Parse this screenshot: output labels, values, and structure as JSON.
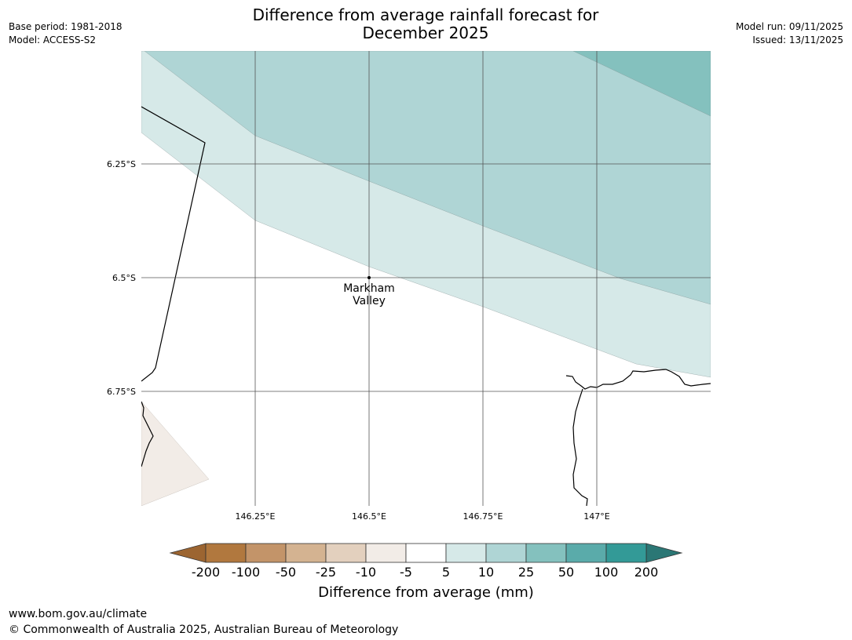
{
  "title_line1": "Difference from average rainfall forecast for",
  "title_line2": "December 2025",
  "meta_left": [
    "Base period: 1981-2018",
    "Model: ACCESS-S2"
  ],
  "meta_right": [
    "Model run: 09/11/2025",
    "Issued: 13/11/2025"
  ],
  "lat_labels": [
    "6.25°S",
    "6.5°S",
    "6.75°S"
  ],
  "lon_labels": [
    "146.25°E",
    "146.5°E",
    "146.75°E",
    "147°E"
  ],
  "place": {
    "line1": "Markham",
    "line2": "Valley"
  },
  "legend": {
    "title": "Difference from average (mm)",
    "ticks": [
      "-200",
      "-100",
      "-50",
      "-25",
      "-10",
      "-5",
      "5",
      "10",
      "25",
      "50",
      "100",
      "200"
    ],
    "colors": [
      "#9c6531",
      "#b1783e",
      "#c39469",
      "#d4b391",
      "#e3d0be",
      "#f2ece7",
      "#ffffff",
      "#d6e9e8",
      "#afd5d5",
      "#84c1be",
      "#5aabaa",
      "#339a97",
      "#2b7775"
    ]
  },
  "footer": {
    "url": "www.bom.gov.au/climate",
    "copyright": "© Commonwealth of Australia 2025, Australian Bureau of Meteorology"
  }
}
